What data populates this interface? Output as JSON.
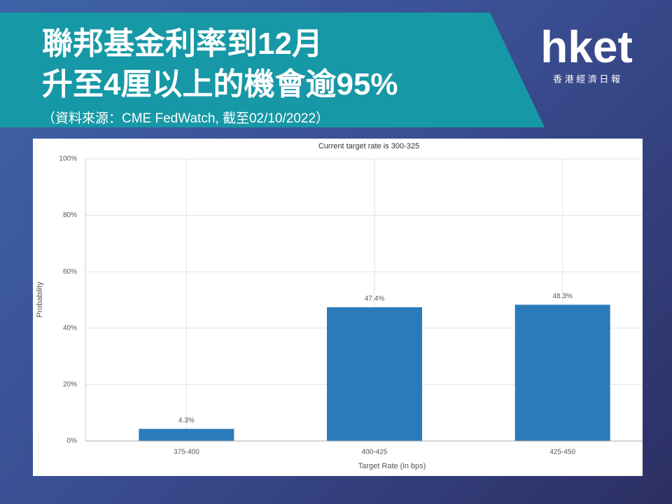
{
  "header": {
    "title_lines": [
      "聯邦基金利率到12月",
      "升至4厘以上的機會逾95%"
    ],
    "source": "（資料來源：CME FedWatch, 截至02/10/2022）"
  },
  "logo": {
    "name": "hket",
    "tagline": "香 港 經 濟 日 報"
  },
  "chart_data": {
    "type": "bar",
    "title": "Current target rate is 300-325",
    "x_label": "Target Rate (in bps)",
    "y_label": "Probability",
    "categories": [
      "375-400",
      "400-425",
      "425-450"
    ],
    "values": [
      4.3,
      47.4,
      48.3
    ],
    "value_labels": [
      "4.3%",
      "47.4%",
      "48.3%"
    ],
    "color": "#2b7bba",
    "ylim": [
      0,
      100
    ],
    "yticks": [
      {
        "value": 0,
        "label": "0%"
      },
      {
        "value": 20,
        "label": "20%"
      },
      {
        "value": 40,
        "label": "40%"
      },
      {
        "value": 60,
        "label": "60%"
      },
      {
        "value": 80,
        "label": "80%"
      },
      {
        "value": 100,
        "label": "100%"
      }
    ],
    "grid": true
  }
}
